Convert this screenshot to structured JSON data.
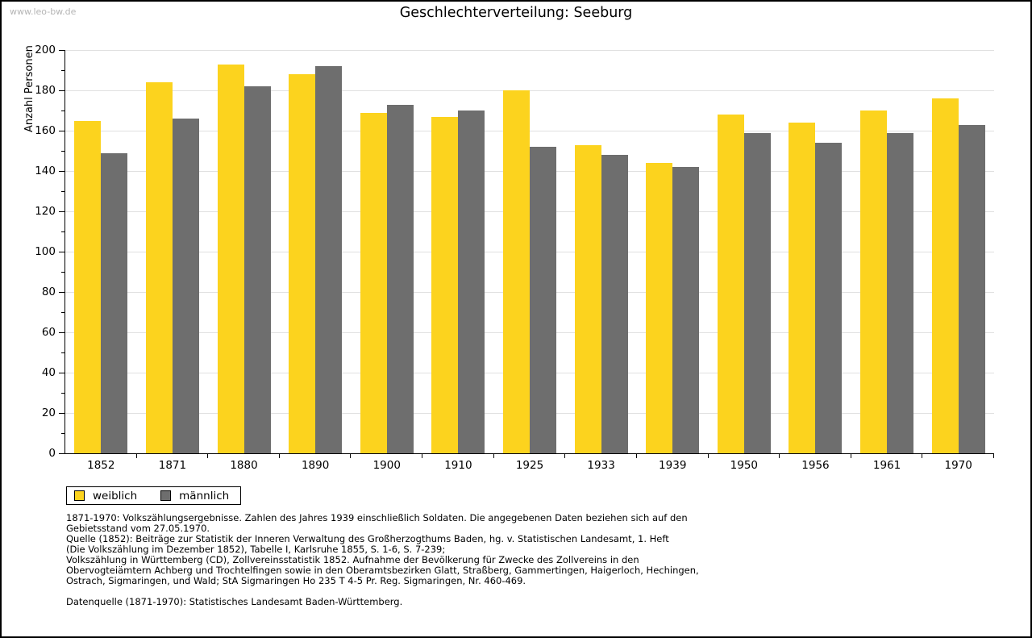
{
  "watermark": "www.leo-bw.de",
  "title": "Geschlechterverteilung: Seeburg",
  "chart_data": {
    "type": "bar",
    "title": "Geschlechterverteilung: Seeburg",
    "ylabel": "Anzahl Personen",
    "xlabel": "",
    "categories": [
      "1852",
      "1871",
      "1880",
      "1890",
      "1900",
      "1910",
      "1925",
      "1933",
      "1939",
      "1950",
      "1956",
      "1961",
      "1970"
    ],
    "series": [
      {
        "name": "weiblich",
        "color": "#FCD31E",
        "values": [
          165,
          184,
          193,
          188,
          169,
          167,
          180,
          153,
          144,
          168,
          164,
          170,
          176
        ]
      },
      {
        "name": "männlich",
        "color": "#6E6E6E",
        "values": [
          149,
          166,
          182,
          192,
          173,
          170,
          152,
          148,
          142,
          159,
          154,
          159,
          163
        ]
      }
    ],
    "ylim": [
      0,
      200
    ],
    "ytick_major": 20,
    "ytick_minor": 10,
    "grid": true,
    "legend_position": "bottom-left"
  },
  "footnotes": {
    "lines": [
      "1871-1970: Volkszählungsergebnisse. Zahlen des Jahres 1939 einschließlich Soldaten. Die angegebenen Daten beziehen sich auf den",
      "Gebietsstand vom 27.05.1970.",
      "Quelle (1852): Beiträge zur Statistik der Inneren Verwaltung des Großherzogthums Baden, hg. v. Statistischen Landesamt, 1. Heft",
      "(Die Volkszählung im Dezember 1852), Tabelle I, Karlsruhe 1855, S. 1-6, S. 7-239;",
      "Volkszählung in Württemberg (CD), Zollvereinsstatistik 1852. Aufnahme der Bevölkerung für Zwecke des Zollvereins in den",
      "Obervogteiämtern Achberg und Trochtelfingen sowie in den Oberamtsbezirken Glatt, Straßberg, Gammertingen, Haigerloch, Hechingen,",
      "Ostrach, Sigmaringen, und Wald; StA Sigmaringen Ho 235 T 4-5 Pr. Reg. Sigmaringen, Nr. 460-469."
    ],
    "datenquelle": "Datenquelle (1871-1970): Statistisches Landesamt Baden-Württemberg."
  }
}
